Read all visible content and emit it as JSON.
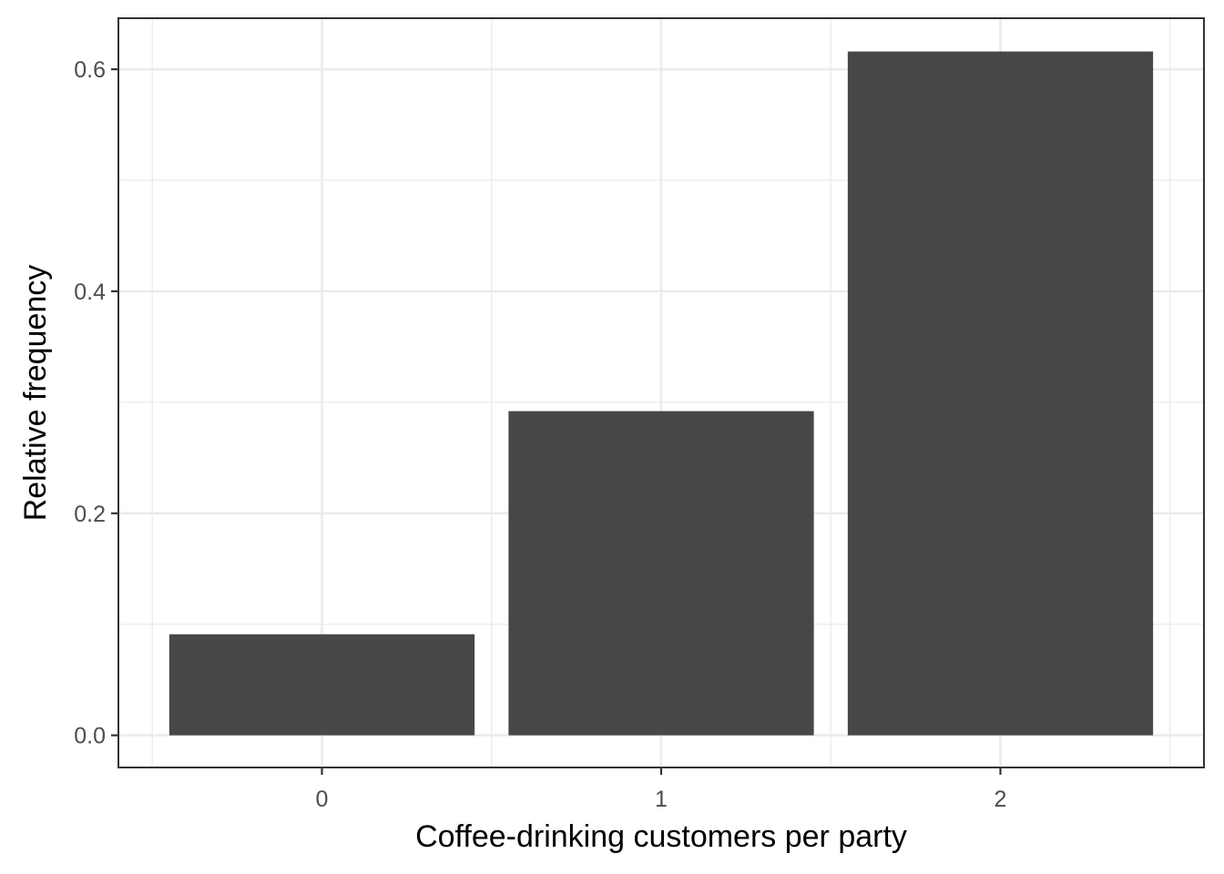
{
  "chart_data": {
    "type": "bar",
    "categories": [
      "0",
      "1",
      "2"
    ],
    "values": [
      0.091,
      0.292,
      0.616
    ],
    "xlabel": "Coffee-drinking customers per party",
    "ylabel": "Relative frequency",
    "ylim": [
      -0.029,
      0.646
    ],
    "yticks": [
      "0.0",
      "0.2",
      "0.4",
      "0.6"
    ],
    "ytick_values": [
      0,
      0.2,
      0.4,
      0.6
    ],
    "grid": true,
    "bar_color": "#474747",
    "theme": "bw"
  }
}
